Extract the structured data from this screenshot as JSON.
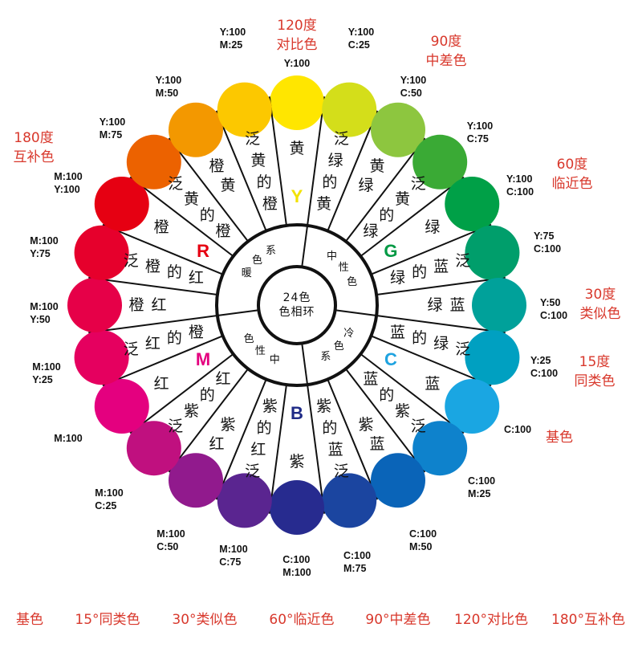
{
  "center": {
    "line1": "24色",
    "line2": "色相环"
  },
  "inner_ring": [
    "暖色系",
    "中性色",
    "冷色系",
    "中性色"
  ],
  "sectors": [
    {
      "label": "黄",
      "letter": "Y",
      "letter_color": "#f2e200",
      "color": "#ffe600",
      "cmyk": [
        "Y:100"
      ]
    },
    {
      "label": "泛绿的黄",
      "color": "#d4de1a",
      "cmyk": [
        "Y:100",
        "C:25"
      ]
    },
    {
      "label": "黄绿",
      "color": "#8dc63f",
      "cmyk": [
        "Y:100",
        "C:50"
      ]
    },
    {
      "label": "泛黄的绿",
      "color": "#3aaa35",
      "cmyk": [
        "Y:100",
        "C:75"
      ]
    },
    {
      "label": "绿",
      "letter": "G",
      "letter_color": "#009944",
      "color": "#00a047",
      "cmyk": [
        "Y:100",
        "C:100"
      ]
    },
    {
      "label": "泛蓝的绿",
      "color": "#009e6b",
      "cmyk": [
        "Y:75",
        "C:100"
      ]
    },
    {
      "label": "蓝绿",
      "color": "#00a19a",
      "cmyk": [
        "Y:50",
        "C:100"
      ]
    },
    {
      "label": "泛绿的蓝",
      "color": "#00a0c1",
      "cmyk": [
        "Y:25",
        "C:100"
      ]
    },
    {
      "label": "蓝",
      "letter": "C",
      "letter_color": "#1fa3e0",
      "color": "#1aa6e2",
      "cmyk": [
        "C:100"
      ]
    },
    {
      "label": "泛紫的蓝",
      "color": "#0e82cc",
      "cmyk": [
        "C:100",
        "M:25"
      ]
    },
    {
      "label": "蓝紫",
      "color": "#0a64b8",
      "cmyk": [
        "C:100",
        "M:50"
      ]
    },
    {
      "label": "泛蓝的紫",
      "color": "#1b45a0",
      "cmyk": [
        "C:100",
        "M:75"
      ]
    },
    {
      "label": "紫",
      "letter": "B",
      "letter_color": "#1e2a86",
      "color": "#272b8f",
      "cmyk": [
        "C:100",
        "M:100"
      ]
    },
    {
      "label": "泛红的紫",
      "color": "#5a2590",
      "cmyk": [
        "M:100",
        "C:75"
      ]
    },
    {
      "label": "红紫",
      "color": "#911a8d",
      "cmyk": [
        "M:100",
        "C:50"
      ]
    },
    {
      "label": "泛紫的红",
      "color": "#c0107f",
      "cmyk": [
        "M:100",
        "C:25"
      ]
    },
    {
      "label": "红",
      "letter": "M",
      "letter_color": "#e4007f",
      "color": "#e4007f",
      "cmyk": [
        "M:100"
      ]
    },
    {
      "label": "泛红的橙",
      "color": "#e5005f",
      "cmyk": [
        "M:100",
        "Y:25"
      ]
    },
    {
      "label": "橙红",
      "color": "#e60048",
      "cmyk": [
        "M:100",
        "Y:50"
      ]
    },
    {
      "label": "泛橙的红",
      "color": "#e6002c",
      "cmyk": [
        "M:100",
        "Y:75"
      ]
    },
    {
      "label": "橙",
      "letter": "R",
      "letter_color": "#e60012",
      "color": "#e60012",
      "cmyk": [
        "M:100",
        "Y:100"
      ]
    },
    {
      "label": "泛黄的橙",
      "color": "#ec6200",
      "cmyk": [
        "Y:100",
        "M:75"
      ]
    },
    {
      "label": "橙黄",
      "color": "#f39800",
      "cmyk": [
        "Y:100",
        "M:50"
      ]
    },
    {
      "label": "泛黄的橙",
      "color": "#fcc800",
      "cmyk": [
        "Y:100",
        "M:25"
      ]
    }
  ],
  "annotations": [
    {
      "line1": "120度",
      "line2": "对比色"
    },
    {
      "line1": "90度",
      "line2": "中差色"
    },
    {
      "line1": "60度",
      "line2": "临近色"
    },
    {
      "line1": "30度",
      "line2": "类似色"
    },
    {
      "line1": "15度",
      "line2": "同类色"
    },
    {
      "line1": "基色",
      "line2": ""
    },
    {
      "line1": "180度",
      "line2": "互补色"
    }
  ],
  "legend": [
    "基色",
    "15°同类色",
    "30°类似色",
    "60°临近色",
    "90°中差色",
    "120°对比色",
    "180°互补色"
  ],
  "colors": {
    "annotation_red": "#d8382c",
    "line": "#111111"
  }
}
